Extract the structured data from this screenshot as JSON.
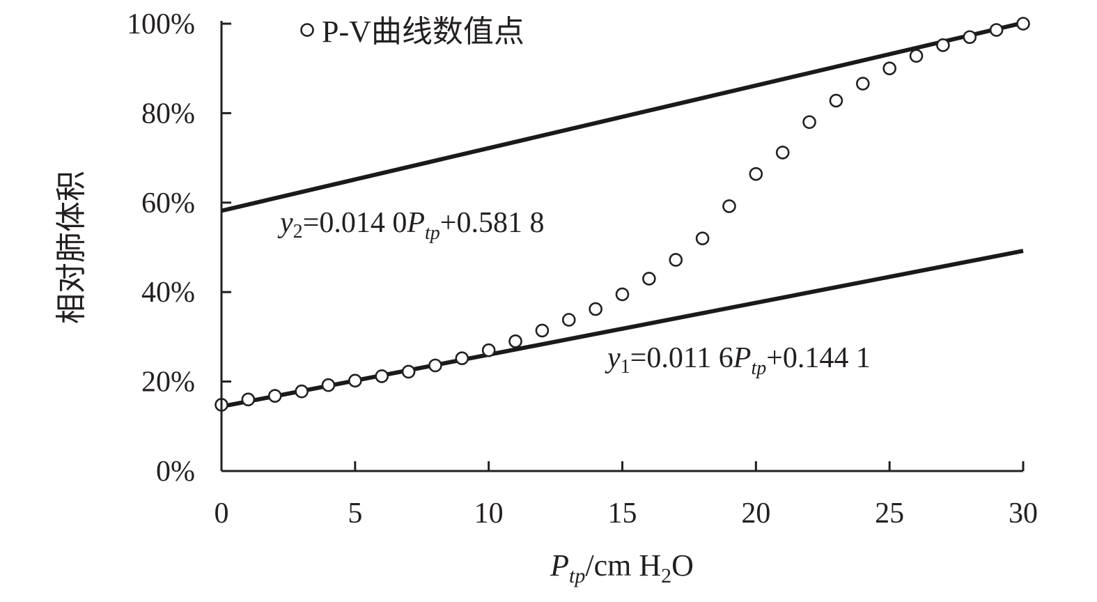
{
  "chart_data": {
    "type": "scatter",
    "x_unit_label": "P",
    "x_unit_sub": "tp",
    "x_unit_rest_1": "/cm H",
    "x_unit_rest_sub": "2",
    "x_unit_rest_2": "O",
    "ylabel": "相对肺体积",
    "xlim": [
      0,
      30
    ],
    "ylim": [
      0,
      1
    ],
    "x_ticks": [
      0,
      5,
      10,
      15,
      20,
      25,
      30
    ],
    "x_tick_labels": [
      "0",
      "5",
      "10",
      "15",
      "20",
      "25",
      "30"
    ],
    "y_ticks": [
      0,
      0.2,
      0.4,
      0.6,
      0.8,
      1.0
    ],
    "y_tick_labels": [
      "0%",
      "20%",
      "40%",
      "60%",
      "80%",
      "100%"
    ],
    "legend": {
      "position": "top-left",
      "label": "P-V曲线数值点"
    },
    "series": [
      {
        "name": "P-V曲线数值点",
        "marker": "open-circle",
        "x": [
          0,
          1,
          2,
          3,
          4,
          5,
          6,
          7,
          8,
          9,
          10,
          11,
          12,
          13,
          14,
          15,
          16,
          17,
          18,
          19,
          20,
          21,
          22,
          23,
          24,
          25,
          26,
          27,
          28,
          29,
          30
        ],
        "y": [
          0.148,
          0.16,
          0.168,
          0.178,
          0.192,
          0.202,
          0.212,
          0.222,
          0.236,
          0.252,
          0.27,
          0.29,
          0.314,
          0.338,
          0.362,
          0.395,
          0.43,
          0.472,
          0.52,
          0.592,
          0.664,
          0.712,
          0.78,
          0.828,
          0.866,
          0.9,
          0.928,
          0.952,
          0.97,
          0.986,
          1.0
        ]
      }
    ],
    "fit_lines": [
      {
        "id": "y2",
        "slope": 0.014,
        "intercept": 0.5818,
        "x_range": [
          0,
          30
        ],
        "label_parts": {
          "y": "y",
          "sub": "2",
          "eq": "=0.014 0",
          "p": "P",
          "psub": "tp",
          "rest": "+0.581 8"
        }
      },
      {
        "id": "y1",
        "slope": 0.0116,
        "intercept": 0.1441,
        "x_range": [
          0,
          30
        ],
        "label_parts": {
          "y": "y",
          "sub": "1",
          "eq": "=0.011 6",
          "p": "P",
          "psub": "tp",
          "rest": "+0.144 1"
        }
      }
    ]
  }
}
